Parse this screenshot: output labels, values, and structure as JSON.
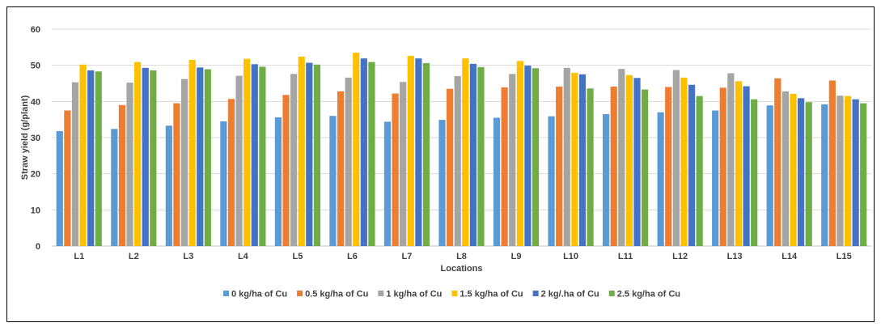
{
  "chart_data": {
    "type": "bar",
    "title": "",
    "xlabel": "Locations",
    "ylabel": "Straw yield (g/plant)",
    "ylim": [
      0,
      60
    ],
    "yticks": [
      0,
      10,
      20,
      30,
      40,
      50,
      60
    ],
    "grid": true,
    "legend_position": "bottom",
    "categories": [
      "L1",
      "L2",
      "L3",
      "L4",
      "L5",
      "L6",
      "L7",
      "L8",
      "L9",
      "L10",
      "L11",
      "L12",
      "L13",
      "L14",
      "L15"
    ],
    "series": [
      {
        "name": "0 kg/ha of Cu",
        "color": "#5B9BD5",
        "values": [
          31.8,
          32.4,
          33.3,
          34.5,
          35.6,
          36.0,
          34.4,
          34.9,
          35.5,
          35.9,
          36.5,
          37.0,
          37.5,
          38.9,
          39.2
        ]
      },
      {
        "name": "0.5 kg/ha of Cu",
        "color": "#ED7D31",
        "values": [
          37.5,
          39.0,
          39.5,
          40.7,
          41.8,
          42.8,
          42.2,
          43.5,
          43.9,
          44.1,
          44.1,
          44.0,
          43.8,
          46.4,
          45.8
        ]
      },
      {
        "name": "1 kg/ha of Cu",
        "color": "#A5A5A5",
        "values": [
          45.3,
          45.2,
          46.2,
          47.1,
          47.6,
          46.6,
          45.4,
          47.0,
          47.6,
          49.3,
          49.0,
          48.7,
          47.8,
          42.8,
          41.6
        ]
      },
      {
        "name": "1.5 kg/ha of Cu",
        "color": "#FFC000",
        "values": [
          50.2,
          50.9,
          51.5,
          51.8,
          52.4,
          53.5,
          52.6,
          51.9,
          51.2,
          47.9,
          47.3,
          46.6,
          45.6,
          42.1,
          41.5
        ]
      },
      {
        "name": "2 kg/.ha of Cu",
        "color": "#4472C4",
        "values": [
          48.6,
          49.3,
          49.4,
          50.3,
          50.7,
          51.9,
          51.9,
          50.4,
          49.9,
          47.5,
          46.5,
          44.6,
          44.2,
          40.9,
          40.6
        ]
      },
      {
        "name": "2.5 kg/ha of Cu",
        "color": "#70AD47",
        "values": [
          48.3,
          48.6,
          48.9,
          49.6,
          50.2,
          50.9,
          50.6,
          49.5,
          49.2,
          43.6,
          43.3,
          41.5,
          40.6,
          39.8,
          39.5
        ]
      }
    ]
  }
}
